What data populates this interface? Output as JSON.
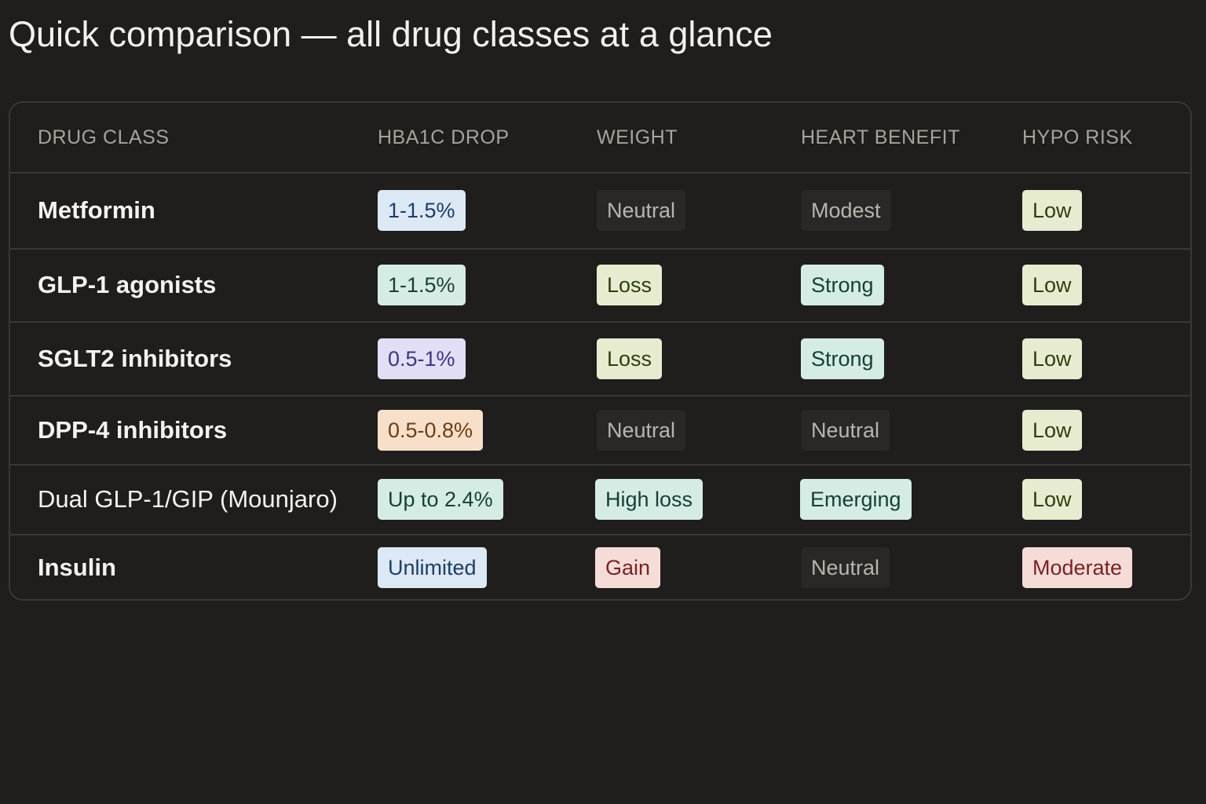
{
  "title": "Quick comparison — all drug classes at a glance",
  "colors": {
    "background": "#1f1e1d",
    "blue_tag": "#dde8f5",
    "teal_tag": "#d5ece5",
    "purple_tag": "#e1def6",
    "orange_tag": "#f7dfca",
    "olive_tag": "#e7ecd0",
    "red_tag": "#f5dcd9",
    "neutral_tag": "#292827"
  },
  "table": {
    "headers": [
      "DRUG CLASS",
      "HBA1C DROP",
      "WEIGHT",
      "HEART BENEFIT",
      "HYPO RISK"
    ],
    "rows": [
      {
        "name": "Metformin",
        "cells": [
          {
            "text": "1-1.5%",
            "tone": "blue"
          },
          {
            "text": "Neutral",
            "tone": "gray"
          },
          {
            "text": "Modest",
            "tone": "gray"
          },
          {
            "text": "Low",
            "tone": "olive"
          }
        ]
      },
      {
        "name": "GLP-1 agonists",
        "cells": [
          {
            "text": "1-1.5%",
            "tone": "teal"
          },
          {
            "text": "Loss",
            "tone": "olive"
          },
          {
            "text": "Strong",
            "tone": "teal"
          },
          {
            "text": "Low",
            "tone": "olive"
          }
        ]
      },
      {
        "name": "SGLT2 inhibitors",
        "cells": [
          {
            "text": "0.5-1%",
            "tone": "purple"
          },
          {
            "text": "Loss",
            "tone": "olive"
          },
          {
            "text": "Strong",
            "tone": "teal"
          },
          {
            "text": "Low",
            "tone": "olive"
          }
        ]
      },
      {
        "name": "DPP-4 inhibitors",
        "cells": [
          {
            "text": "0.5-0.8%",
            "tone": "orange"
          },
          {
            "text": "Neutral",
            "tone": "gray"
          },
          {
            "text": "Neutral",
            "tone": "gray"
          },
          {
            "text": "Low",
            "tone": "olive"
          }
        ]
      },
      {
        "name": "Dual GLP-1/GIP (Mounjaro)",
        "cells": [
          {
            "text": "Up to 2.4%",
            "tone": "teal"
          },
          {
            "text": "High loss",
            "tone": "teal"
          },
          {
            "text": "Emerging",
            "tone": "teal"
          },
          {
            "text": "Low",
            "tone": "olive"
          }
        ]
      },
      {
        "name": "Insulin",
        "cells": [
          {
            "text": "Unlimited",
            "tone": "blue"
          },
          {
            "text": "Gain",
            "tone": "red"
          },
          {
            "text": "Neutral",
            "tone": "gray"
          },
          {
            "text": "Moderate",
            "tone": "red"
          }
        ]
      }
    ]
  }
}
